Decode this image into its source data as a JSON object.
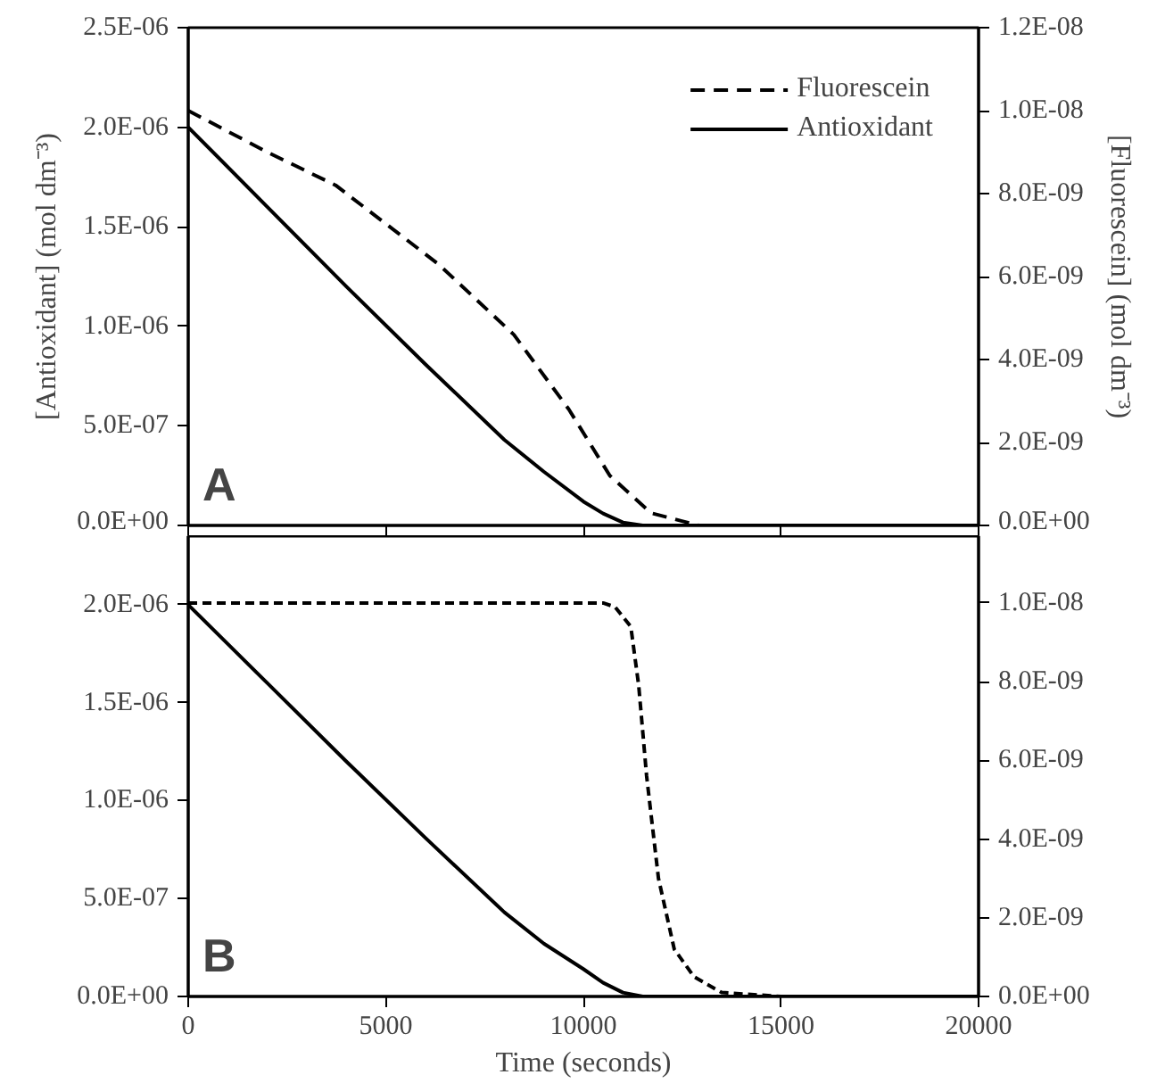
{
  "chart_data": [
    {
      "type": "line",
      "ylabel": "[Antioxidant] (mol dm⁻³)",
      "y2label": "[Fluorescein] (mol dm⁻³)",
      "annotations": [
        "A"
      ],
      "legend": "top right",
      "tick_labels": "y",
      "grid": false,
      "xlim": [
        0,
        20000
      ],
      "xticks": [
        {
          "value": 0,
          "label": null
        },
        {
          "value": 5000,
          "label": null
        },
        {
          "value": 10000,
          "label": null
        },
        {
          "value": 15000,
          "label": null
        },
        {
          "value": 20000,
          "label": null
        }
      ],
      "ylim": [
        0,
        2.5e-06
      ],
      "yticks": [
        {
          "value": 0,
          "label": "0.0E+00"
        },
        {
          "value": 5e-07,
          "label": "5.0E-07"
        },
        {
          "value": 1e-06,
          "label": "1.0E-06"
        },
        {
          "value": 1.5e-06,
          "label": "1.5E-06"
        },
        {
          "value": 2e-06,
          "label": "2.0E-06"
        },
        {
          "value": 2.5e-06,
          "label": "2.5E-06"
        }
      ],
      "y2lim": [
        0,
        1.2e-08
      ],
      "y2ticks": [
        {
          "value": 0,
          "label": "0.0E+00"
        },
        {
          "value": 2e-09,
          "label": "2.0E-09"
        },
        {
          "value": 4e-09,
          "label": "4.0E-09"
        },
        {
          "value": 6e-09,
          "label": "6.0E-09"
        },
        {
          "value": 8e-09,
          "label": "8.0E-09"
        },
        {
          "value": 1e-08,
          "label": "1.0E-08"
        },
        {
          "value": 1.2e-08,
          "label": "1.2E-08"
        }
      ],
      "series": [
        {
          "name": "Fluorescein",
          "color": "#000000",
          "axis": "y2",
          "line_style": "dashed",
          "x": [
            0,
            2000,
            3730,
            6330,
            8240,
            9630,
            10670,
            11710,
            12920,
            20000
          ],
          "values": [
            1e-08,
            9e-09,
            8.2e-09,
            6.3e-09,
            4.6e-09,
            2.8e-09,
            1.2e-09,
            3e-10,
            0,
            0
          ]
        },
        {
          "name": "Antioxidant",
          "color": "#000000",
          "line_style": "solid",
          "x": [
            0,
            2000,
            4000,
            6000,
            8000,
            9000,
            10000,
            10500,
            11000,
            11500,
            20000
          ],
          "values": [
            2e-06,
            1.6e-06,
            1.2e-06,
            8.1e-07,
            4.3e-07,
            2.7e-07,
            1.2e-07,
            6e-08,
            1.5e-08,
            0,
            0
          ]
        }
      ]
    },
    {
      "type": "line",
      "xlabel": "Time (seconds)",
      "annotations": [
        "B"
      ],
      "grid": false,
      "xlim": [
        0,
        20000
      ],
      "xticks": [
        0,
        5000,
        10000,
        15000,
        20000
      ],
      "ylim": [
        0,
        2.35e-06
      ],
      "yticks": [
        {
          "value": 0,
          "label": "0.0E+00"
        },
        {
          "value": 5e-07,
          "label": "5.0E-07"
        },
        {
          "value": 1e-06,
          "label": "1.0E-06"
        },
        {
          "value": 1.5e-06,
          "label": "1.5E-06"
        },
        {
          "value": 2e-06,
          "label": "2.0E-06"
        }
      ],
      "y2lim": [
        0,
        1.17e-08
      ],
      "y2ticks": [
        {
          "value": 0,
          "label": "0.0E+00"
        },
        {
          "value": 2e-09,
          "label": "2.0E-09"
        },
        {
          "value": 4e-09,
          "label": "4.0E-09"
        },
        {
          "value": 6e-09,
          "label": "6.0E-09"
        },
        {
          "value": 8e-09,
          "label": "8.0E-09"
        },
        {
          "value": 1e-08,
          "label": "1.0E-08"
        }
      ],
      "series": [
        {
          "color": "#000000",
          "axis": "y2",
          "line_style": "dashed",
          "x": [
            0,
            10500,
            10800,
            11200,
            11400,
            11600,
            11900,
            12300,
            12800,
            13500,
            15000,
            20000
          ],
          "values": [
            1e-08,
            1e-08,
            9.9e-09,
            9.4e-09,
            7.9e-09,
            5.6e-09,
            3e-09,
            1.2e-09,
            5e-10,
            1e-10,
            0,
            0
          ]
        },
        {
          "color": "#000000",
          "line_style": "solid",
          "x": [
            0,
            2000,
            4000,
            6000,
            8000,
            9000,
            10000,
            10500,
            11000,
            11500,
            20000
          ],
          "values": [
            2e-06,
            1.6e-06,
            1.2e-06,
            8.1e-07,
            4.3e-07,
            2.7e-07,
            1.4e-07,
            7e-08,
            2e-08,
            0,
            0
          ]
        }
      ]
    }
  ]
}
